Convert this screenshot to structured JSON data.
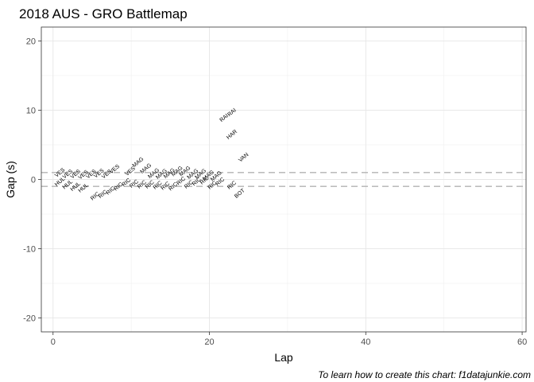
{
  "chart_data": {
    "type": "scatter",
    "title": "2018 AUS - GRO Battlemap",
    "xlabel": "Lap",
    "ylabel": "Gap (s)",
    "caption": "To learn how to create this chart: f1datajunkie.com",
    "xlim": [
      -1.5,
      60.5
    ],
    "ylim": [
      -22,
      22
    ],
    "xticks": [
      0,
      20,
      40,
      60
    ],
    "yticks": [
      -20,
      -10,
      0,
      10,
      20
    ],
    "grid": true,
    "reference_lines": [
      1,
      -1
    ],
    "label_angle": -40,
    "highlight_color": "#f8766d",
    "text_color": "#000000",
    "points": [
      {
        "x": 1,
        "y": 0.8,
        "label": "VES"
      },
      {
        "x": 2,
        "y": 0.6,
        "label": "VES"
      },
      {
        "x": 3,
        "y": 0.6,
        "label": "VES"
      },
      {
        "x": 4,
        "y": 0.5,
        "label": "VES"
      },
      {
        "x": 5,
        "y": 0.6,
        "label": "VES"
      },
      {
        "x": 6,
        "y": 0.7,
        "label": "VES"
      },
      {
        "x": 7,
        "y": 0.6,
        "label": "VES"
      },
      {
        "x": 8,
        "y": 1.3,
        "label": "VES"
      },
      {
        "x": 10,
        "y": 1.0,
        "label": "VES"
      },
      {
        "x": 11,
        "y": 2.3,
        "label": "MAG"
      },
      {
        "x": 12,
        "y": 1.4,
        "label": "MAG"
      },
      {
        "x": 13,
        "y": 0.7,
        "label": "MAG"
      },
      {
        "x": 14,
        "y": 0.6,
        "label": "MAG"
      },
      {
        "x": 15,
        "y": 0.7,
        "label": "MAG"
      },
      {
        "x": 16,
        "y": 1.0,
        "label": "MAG"
      },
      {
        "x": 17,
        "y": 1.0,
        "label": "MAG"
      },
      {
        "x": 18,
        "y": 0.6,
        "label": "MAG"
      },
      {
        "x": 19,
        "y": 0.6,
        "label": "MAG"
      },
      {
        "x": 20,
        "y": 0.4,
        "label": "MAG"
      },
      {
        "x": 21,
        "y": 0.3,
        "label": "MAG"
      },
      {
        "x": 22,
        "y": 8.7,
        "label": "RAI"
      },
      {
        "x": 23,
        "y": 9.5,
        "label": "RAI"
      },
      {
        "x": 23,
        "y": 6.3,
        "label": "HAR",
        "highlight": true
      },
      {
        "x": 24.5,
        "y": 3.0,
        "label": "VAN"
      },
      {
        "x": 1,
        "y": -0.5,
        "label": "HUL"
      },
      {
        "x": 2,
        "y": -0.9,
        "label": "HUL"
      },
      {
        "x": 3,
        "y": -1.2,
        "label": "HUL"
      },
      {
        "x": 4,
        "y": -1.4,
        "label": "HUL"
      },
      {
        "x": 5.5,
        "y": -2.6,
        "label": "RIC"
      },
      {
        "x": 6.5,
        "y": -2.3,
        "label": "RIC"
      },
      {
        "x": 7.5,
        "y": -1.8,
        "label": "RIC"
      },
      {
        "x": 8.5,
        "y": -1.2,
        "label": "RIC"
      },
      {
        "x": 9.5,
        "y": -0.6,
        "label": "RIC"
      },
      {
        "x": 10.5,
        "y": -0.8,
        "label": "RIC"
      },
      {
        "x": 11.5,
        "y": -0.9,
        "label": "RIC"
      },
      {
        "x": 12.5,
        "y": -0.9,
        "label": "RIC"
      },
      {
        "x": 13.5,
        "y": -1.0,
        "label": "RIC"
      },
      {
        "x": 14.5,
        "y": -1.1,
        "label": "RIC"
      },
      {
        "x": 15.5,
        "y": -1.2,
        "label": "RIC"
      },
      {
        "x": 16.5,
        "y": -0.4,
        "label": "RIC"
      },
      {
        "x": 17.5,
        "y": -0.9,
        "label": "RIC"
      },
      {
        "x": 18.5,
        "y": -0.5,
        "label": "RIC"
      },
      {
        "x": 19.5,
        "y": -0.3,
        "label": "RIC"
      },
      {
        "x": 20.5,
        "y": -1.0,
        "label": "RIC"
      },
      {
        "x": 21.5,
        "y": -0.5,
        "label": "RIC"
      },
      {
        "x": 23,
        "y": -1.0,
        "label": "RIC"
      },
      {
        "x": 24,
        "y": -2.2,
        "label": "BOT"
      }
    ]
  }
}
